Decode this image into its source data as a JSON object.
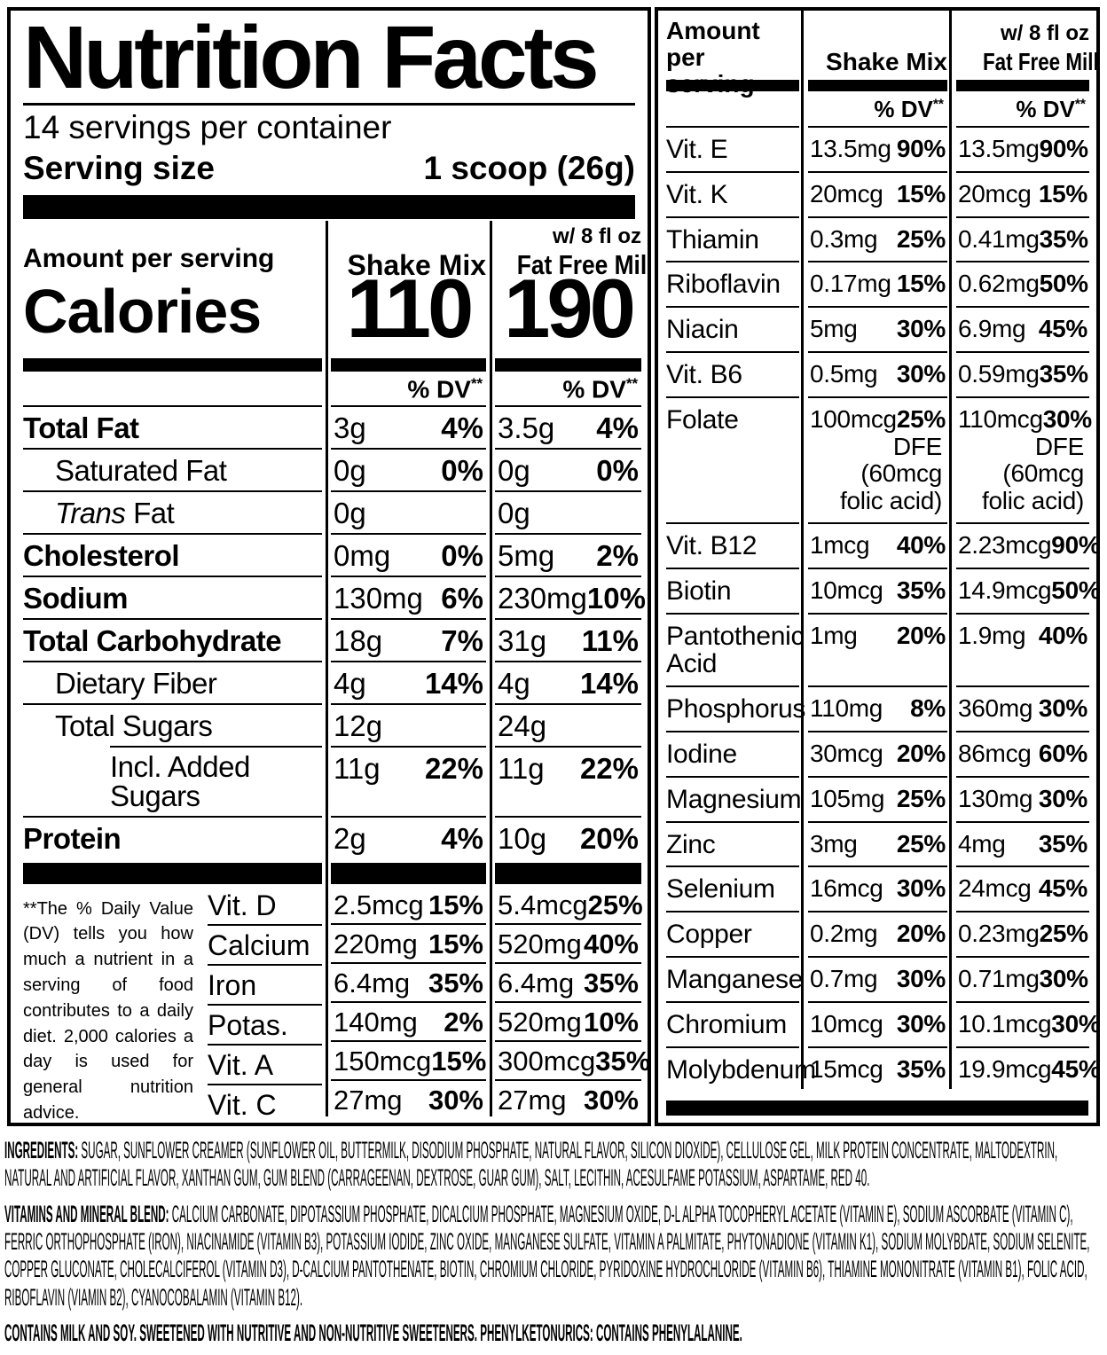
{
  "left_panel": {
    "title": "Nutrition Facts",
    "servings_per_container": "14 servings per container",
    "serving_size_label": "Serving size",
    "serving_size_value": "1 scoop (26g)",
    "amount_per_serving": "Amount per serving",
    "calories_label": "Calories",
    "shake_header": "Shake Mix",
    "milk_header_line1": "w/ 8 fl oz",
    "milk_header_line2": "Fat Free Milk",
    "calories_shake": "110",
    "calories_milk": "190",
    "dv_label": "% DV",
    "dv_sup": "**",
    "nutrients": [
      {
        "name": "Total Fat",
        "bold": true,
        "indent": 0,
        "v1": "3g",
        "p1": "4%",
        "v2": "3.5g",
        "p2": "4%"
      },
      {
        "name": "Saturated Fat",
        "bold": false,
        "indent": 1,
        "v1": "0g",
        "p1": "0%",
        "v2": "0g",
        "p2": "0%"
      },
      {
        "name": "Trans Fat",
        "bold": false,
        "indent": 1,
        "italic_first": true,
        "v1": "0g",
        "p1": "",
        "v2": "0g",
        "p2": ""
      },
      {
        "name": "Cholesterol",
        "bold": true,
        "indent": 0,
        "v1": "0mg",
        "p1": "0%",
        "v2": "5mg",
        "p2": "2%"
      },
      {
        "name": "Sodium",
        "bold": true,
        "indent": 0,
        "v1": "130mg",
        "p1": "6%",
        "v2": "230mg",
        "p2": "10%"
      },
      {
        "name": "Total Carbohydrate",
        "bold": true,
        "indent": 0,
        "v1": "18g",
        "p1": "7%",
        "v2": "31g",
        "p2": "11%"
      },
      {
        "name": "Dietary Fiber",
        "bold": false,
        "indent": 1,
        "v1": "4g",
        "p1": "14%",
        "v2": "4g",
        "p2": "14%"
      },
      {
        "name": "Total Sugars",
        "bold": false,
        "indent": 1,
        "v1": "12g",
        "p1": "",
        "v2": "24g",
        "p2": ""
      },
      {
        "name": "Incl. Added Sugars",
        "bold": false,
        "indent": 2,
        "rule_indent": true,
        "v1": "11g",
        "p1": "22%",
        "v2": "11g",
        "p2": "22%"
      },
      {
        "name": "Protein",
        "bold": true,
        "indent": 0,
        "v1": "2g",
        "p1": "4%",
        "v2": "10g",
        "p2": "20%"
      }
    ],
    "footnote": "**The % Daily Value (DV) tells you how much a nutrient in a serving of food contributes to a daily diet. 2,000 calories a day is used for general nutrition advice.",
    "vitamins": [
      {
        "name": "Vit. D",
        "v1": "2.5mcg",
        "p1": "15%",
        "v2": "5.4mcg",
        "p2": "25%"
      },
      {
        "name": "Calcium",
        "v1": "220mg",
        "p1": "15%",
        "v2": "520mg",
        "p2": "40%"
      },
      {
        "name": "Iron",
        "v1": "6.4mg",
        "p1": "35%",
        "v2": "6.4mg",
        "p2": "35%"
      },
      {
        "name": "Potas.",
        "v1": "140mg",
        "p1": "2%",
        "v2": "520mg",
        "p2": "10%"
      },
      {
        "name": "Vit. A",
        "v1": "150mcg",
        "p1": "15%",
        "v2": "300mcg",
        "p2": "35%"
      },
      {
        "name": "Vit. C",
        "v1": "27mg",
        "p1": "30%",
        "v2": "27mg",
        "p2": "30%"
      }
    ]
  },
  "right_panel": {
    "amount_per_serving": "Amount per serving",
    "shake_header": "Shake Mix",
    "milk_header_line1": "w/ 8 fl oz",
    "milk_header_line2": "Fat Free Milk",
    "dv_label": "% DV",
    "dv_sup": "**",
    "rows": [
      {
        "name": "Vit. E",
        "v1": "13.5mg",
        "p1": "90%",
        "v2": "13.5mg",
        "p2": "90%"
      },
      {
        "name": "Vit. K",
        "v1": "20mcg",
        "p1": "15%",
        "v2": "20mcg",
        "p2": "15%"
      },
      {
        "name": "Thiamin",
        "v1": "0.3mg",
        "p1": "25%",
        "v2": "0.41mg",
        "p2": "35%"
      },
      {
        "name": "Riboflavin",
        "v1": "0.17mg",
        "p1": "15%",
        "v2": "0.62mg",
        "p2": "50%"
      },
      {
        "name": "Niacin",
        "v1": "5mg",
        "p1": "30%",
        "v2": "6.9mg",
        "p2": "45%"
      },
      {
        "name": "Vit. B6",
        "v1": "0.5mg",
        "p1": "30%",
        "v2": "0.59mg",
        "p2": "35%"
      },
      {
        "name": "Folate",
        "v1": "100mcg",
        "p1": "25%",
        "v1_extra": [
          "DFE (60mcg",
          "folic acid)"
        ],
        "v2": "110mcg",
        "p2": "30%",
        "v2_extra": [
          "DFE (60mcg",
          "folic acid)"
        ]
      },
      {
        "name": "Vit. B12",
        "v1": "1mcg",
        "p1": "40%",
        "v2": "2.23mcg",
        "p2": "90%"
      },
      {
        "name": "Biotin",
        "v1": "10mcg",
        "p1": "35%",
        "v2": "14.9mcg",
        "p2": "50%"
      },
      {
        "name": "Pantothenic Acid",
        "v1": "1mg",
        "p1": "20%",
        "v2": "1.9mg",
        "p2": "40%"
      },
      {
        "name": "Phosphorus",
        "v1": "110mg",
        "p1": "8%",
        "v2": "360mg",
        "p2": "30%"
      },
      {
        "name": "Iodine",
        "v1": "30mcg",
        "p1": "20%",
        "v2": "86mcg",
        "p2": "60%"
      },
      {
        "name": "Magnesium",
        "v1": "105mg",
        "p1": "25%",
        "v2": "130mg",
        "p2": "30%"
      },
      {
        "name": "Zinc",
        "v1": "3mg",
        "p1": "25%",
        "v2": "4mg",
        "p2": "35%"
      },
      {
        "name": "Selenium",
        "v1": "16mcg",
        "p1": "30%",
        "v2": "24mcg",
        "p2": "45%"
      },
      {
        "name": "Copper",
        "v1": "0.2mg",
        "p1": "20%",
        "v2": "0.23mg",
        "p2": "25%"
      },
      {
        "name": "Manganese",
        "v1": "0.7mg",
        "p1": "30%",
        "v2": "0.71mg",
        "p2": "30%"
      },
      {
        "name": "Chromium",
        "v1": "10mcg",
        "p1": "30%",
        "v2": "10.1mcg",
        "p2": "30%"
      },
      {
        "name": "Molybdenum",
        "v1": "15mcg",
        "p1": "35%",
        "v2": "19.9mcg",
        "p2": "45%"
      }
    ]
  },
  "bottom": {
    "ingredients": {
      "label": "INGREDIENTS:",
      "text": " SUGAR, SUNFLOWER CREAMER (SUNFLOWER OIL, BUTTERMILK, DISODIUM PHOSPHATE, NATURAL FLAVOR, SILICON DIOXIDE), CELLULOSE GEL, MILK PROTEIN CONCENTRATE, MALTODEXTRIN, NATURAL AND ARTIFICIAL FLAVOR, XANTHAN GUM, GUM BLEND (CARRAGEENAN, DEXTROSE, GUAR GUM), SALT, LECITHIN, ACESULFAME POTASSIUM, ASPARTAME, RED 40."
    },
    "vitamins_blend": {
      "label": "VITAMINS AND MINERAL BLEND:",
      "text": " CALCIUM CARBONATE, DIPOTASSIUM PHOSPHATE, DICALCIUM PHOSPHATE, MAGNESIUM OXIDE, D-L ALPHA TOCOPHERYL ACETATE (VITAMIN E), SODIUM ASCORBATE (VITAMIN C), FERRIC ORTHOPHOSPHATE (IRON), NIACINAMIDE (VITAMIN B3), POTASSIUM IODIDE, ZINC OXIDE, MANGANESE SULFATE, VITAMIN A PALMITATE, PHYTONADIONE (VITAMIN K1), SODIUM MOLYBDATE, SODIUM SELENITE, COPPER GLUCONATE, CHOLECALCIFEROL (VITAMIN D3), D-CALCIUM PANTOTHENATE, BIOTIN, CHROMIUM CHLORIDE, PYRIDOXINE HYDROCHLORIDE (VITAMIN B6), THIAMINE MONONITRATE (VITAMIN B1), FOLIC ACID, RIBOFLAVIN (VIAMIN B2), CYANOCOBALAMIN (VITAMIN B12)."
    },
    "allergen": "CONTAINS MILK AND SOY. SWEETENED WITH NUTRITIVE AND NON-NUTRITIVE SWEETENERS. PHENYLKETONURICS: CONTAINS PHENYLALANINE."
  }
}
